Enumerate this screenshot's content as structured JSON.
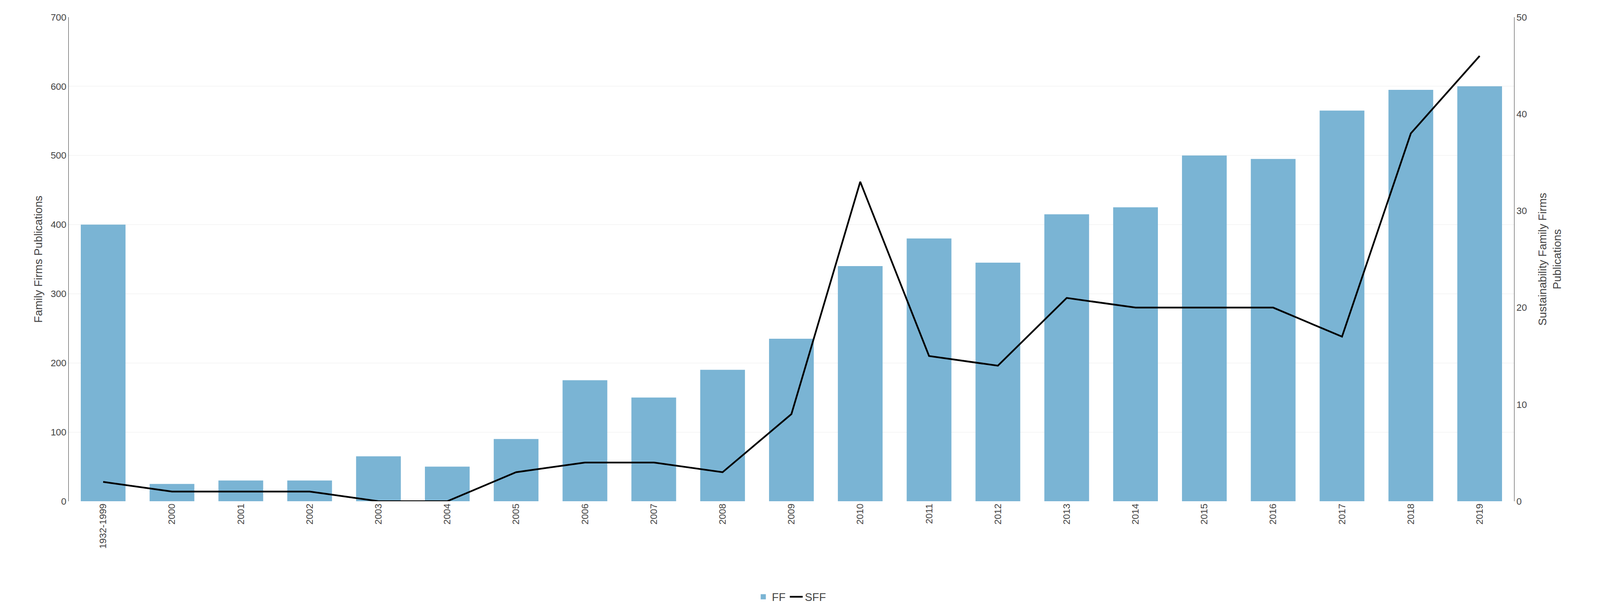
{
  "chart_data": {
    "type": "bar",
    "categories": [
      "1932-1999",
      "2000",
      "2001",
      "2002",
      "2003",
      "2004",
      "2005",
      "2006",
      "2007",
      "2008",
      "2009",
      "2010",
      "2011",
      "2012",
      "2013",
      "2014",
      "2015",
      "2016",
      "2017",
      "2018",
      "2019"
    ],
    "series": [
      {
        "name": "FF",
        "type": "bar",
        "color": "#7ab4d4",
        "values": [
          400,
          25,
          30,
          30,
          65,
          50,
          90,
          175,
          150,
          190,
          235,
          340,
          380,
          345,
          415,
          425,
          500,
          495,
          565,
          595,
          600
        ]
      },
      {
        "name": "SFF",
        "type": "line",
        "axis": "y2",
        "color": "#000000",
        "values": [
          2,
          1,
          1,
          1,
          0,
          0,
          3,
          4,
          4,
          3,
          9,
          33,
          15,
          14,
          21,
          20,
          20,
          20,
          17,
          38,
          46
        ]
      }
    ],
    "ylabel": "Family Firms Publications",
    "y2label": "Sustainability Family Firms\nPublications",
    "ylim": [
      0,
      700
    ],
    "yticks": [
      0,
      100,
      200,
      300,
      400,
      500,
      600,
      700
    ],
    "y2lim": [
      0,
      50
    ],
    "y2ticks": [
      0,
      10,
      20,
      30,
      40,
      50
    ],
    "grid": true,
    "legend": "bottom"
  }
}
